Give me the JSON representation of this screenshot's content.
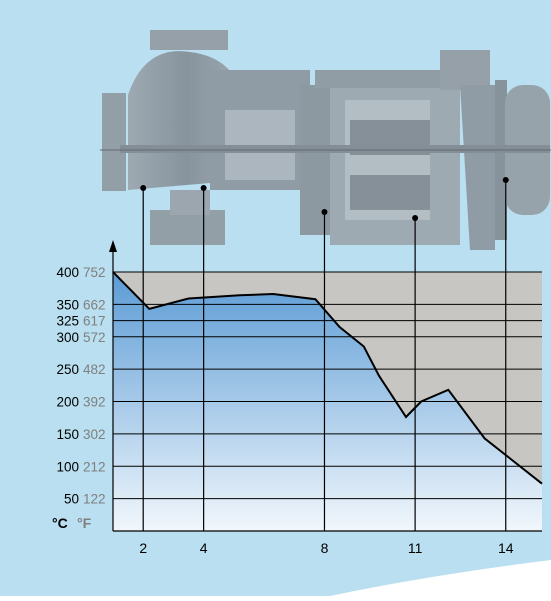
{
  "chart_data": {
    "type": "area",
    "title": "",
    "xlabel": "",
    "ylabel": "",
    "y_unit_labels": {
      "celsius": "°C",
      "fahrenheit": "°F"
    },
    "y_ticks": [
      {
        "c": 50,
        "f": 122
      },
      {
        "c": 100,
        "f": 212
      },
      {
        "c": 150,
        "f": 302
      },
      {
        "c": 200,
        "f": 392
      },
      {
        "c": 250,
        "f": 482
      },
      {
        "c": 300,
        "f": 572
      },
      {
        "c": 325,
        "f": 617
      },
      {
        "c": 350,
        "f": 662
      },
      {
        "c": 400,
        "f": 752
      }
    ],
    "ylim": [
      0,
      400
    ],
    "xlim": [
      1,
      15.2
    ],
    "x_ticks": [
      2,
      4,
      8,
      11,
      14
    ],
    "temperature_profile": {
      "x": [
        1,
        2.2,
        3.5,
        5.2,
        6.3,
        7.7,
        8.5,
        9.3,
        9.8,
        10.7,
        11.2,
        12.1,
        13.3,
        15.2
      ],
      "y": [
        400,
        343,
        359,
        364,
        366,
        358,
        315,
        285,
        240,
        176,
        200,
        218,
        143,
        73
      ]
    },
    "grid": true,
    "legend": "none",
    "colors": {
      "background": "#b9dff0",
      "plot_bg": "#c8c6c2",
      "fill_top": "#5b9bd5",
      "fill_bottom": "#f1f7fc",
      "fahrenheit_text": "#7f7f7f",
      "line": "#000000"
    }
  },
  "diagram": {
    "description_icon": "pump-cross-section-drawing",
    "callout_x": [
      2,
      4,
      8,
      11,
      14
    ]
  }
}
